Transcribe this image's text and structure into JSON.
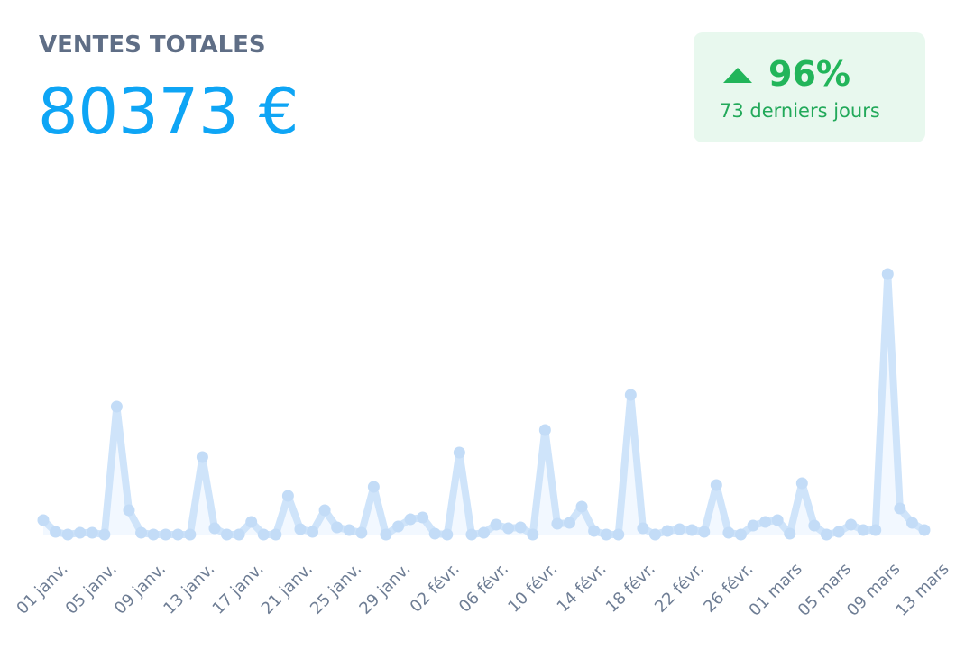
{
  "header": {
    "title": "VENTES TOTALES",
    "total": "80373 €"
  },
  "badge": {
    "change": "96%",
    "period": "73 derniers jours"
  },
  "chart_data": {
    "type": "line",
    "color": "#cfe4fa",
    "categories": [
      "01 janv.",
      null,
      null,
      null,
      "05 janv.",
      null,
      null,
      null,
      "09 janv.",
      null,
      null,
      null,
      "13 janv.",
      null,
      null,
      null,
      "17 janv.",
      null,
      null,
      null,
      "21 janv.",
      null,
      null,
      null,
      "25 janv.",
      null,
      null,
      null,
      "29 janv.",
      null,
      null,
      null,
      "02 févr.",
      null,
      null,
      null,
      "06 févr.",
      null,
      null,
      null,
      "10 févr.",
      null,
      null,
      null,
      "14 févr.",
      null,
      null,
      null,
      "18 févr.",
      null,
      null,
      null,
      "22 févr.",
      null,
      null,
      null,
      "26 févr.",
      null,
      null,
      null,
      "01 mars",
      null,
      null,
      null,
      "05 mars",
      null,
      null,
      null,
      "09 mars",
      null,
      null,
      null,
      "13 mars"
    ],
    "values": [
      16,
      3,
      0,
      2,
      2,
      0,
      142,
      27,
      2,
      0,
      0,
      0,
      0,
      86,
      7,
      0,
      0,
      14,
      0,
      0,
      43,
      6,
      3,
      27,
      8,
      5,
      2,
      53,
      0,
      9,
      17,
      19,
      1,
      0,
      91,
      0,
      2,
      11,
      7,
      8,
      0,
      116,
      12,
      13,
      31,
      4,
      0,
      0,
      155,
      7,
      0,
      4,
      6,
      5,
      3,
      55,
      2,
      0,
      10,
      14,
      16,
      1,
      57,
      10,
      0,
      3,
      11,
      5,
      5,
      289,
      29,
      13,
      5
    ],
    "ylim": [
      0,
      300
    ]
  }
}
